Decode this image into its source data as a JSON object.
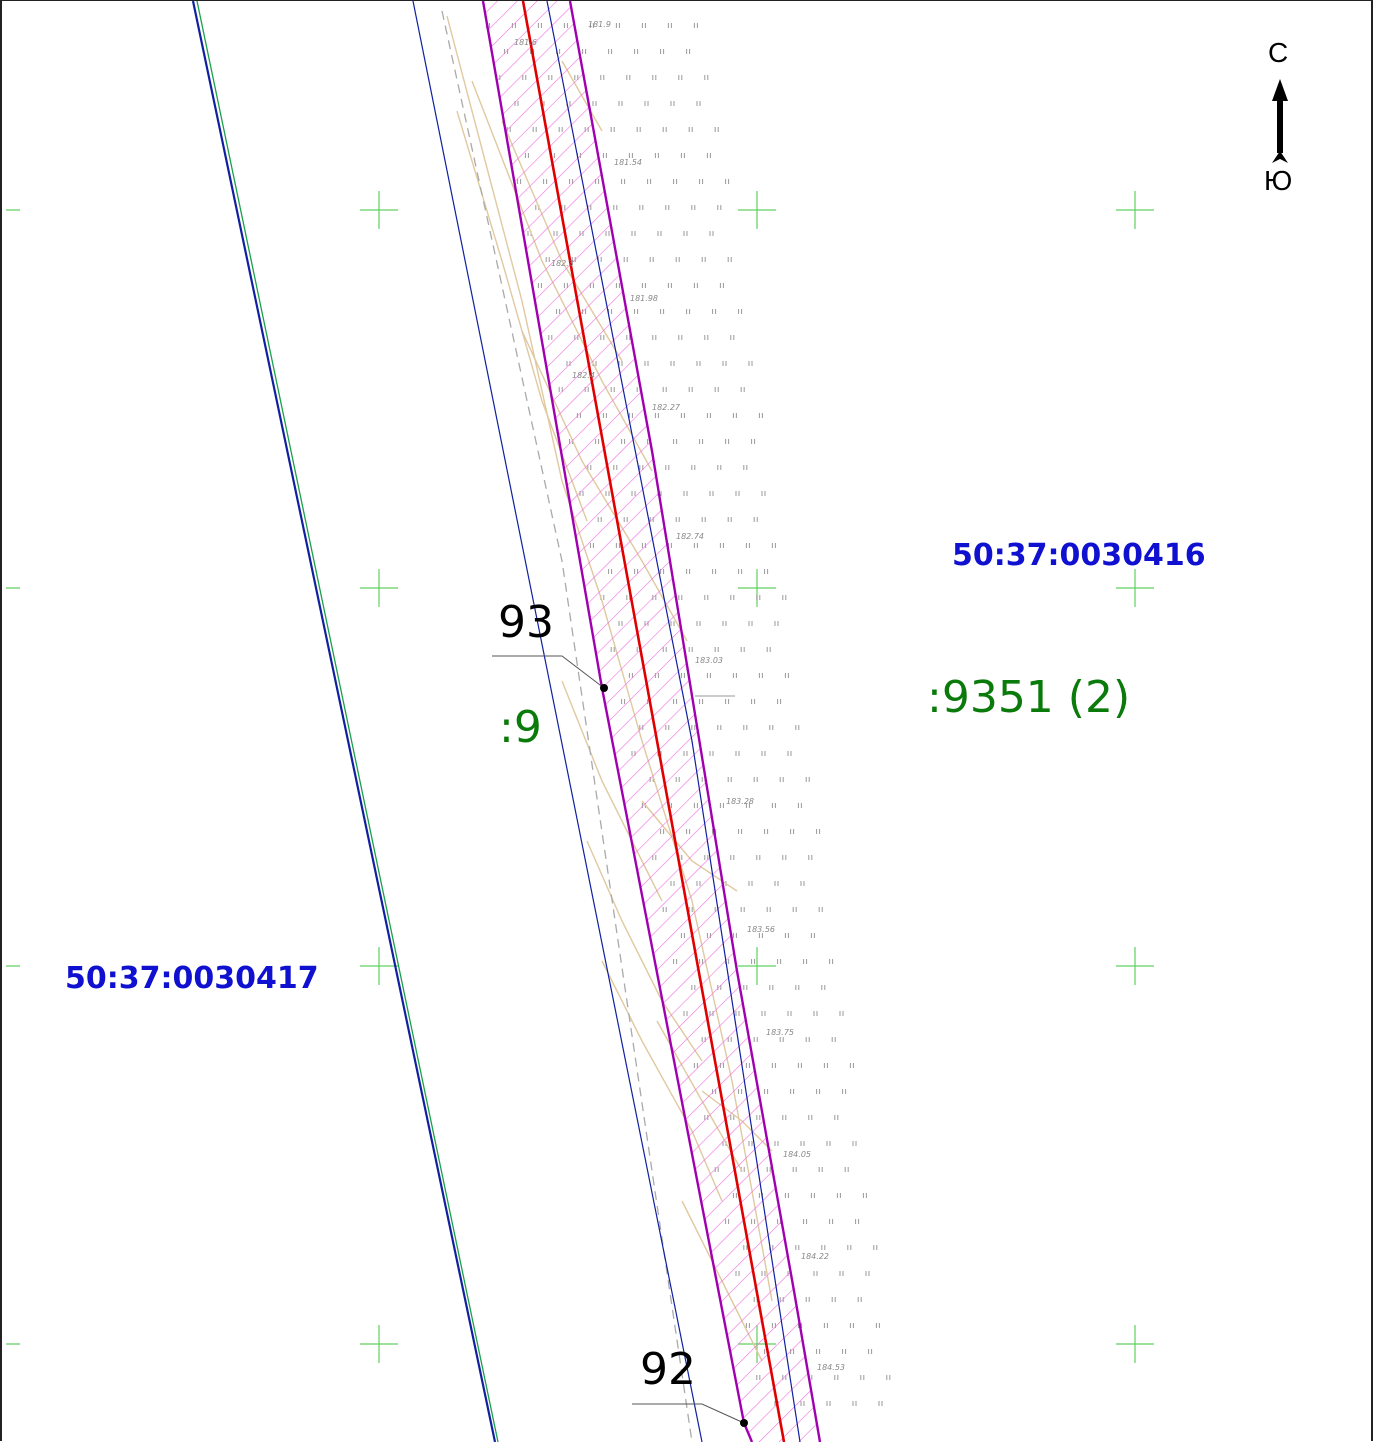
{
  "colors": {
    "quarter_label": "#1010d0",
    "parcel_label": "#0a7a0a",
    "axis_line": "#e00000",
    "zone_boundary": "#a000b0",
    "zone_hatch": "#f070e0",
    "blue_line": "#1020a0",
    "green_line": "#1aa04a",
    "contour": "#e0c9a0",
    "grid_cross": "#60d060"
  },
  "compass": {
    "north": "С",
    "south": "Ю",
    "icon": "north-arrow-icon"
  },
  "quarters": [
    {
      "label": "50:37:0030416"
    },
    {
      "label": "50:37:0030417"
    }
  ],
  "parcels": [
    {
      "label": ":9351 (2)"
    },
    {
      "label": ":9"
    }
  ],
  "points": [
    {
      "label": "93"
    },
    {
      "label": "92"
    }
  ],
  "elevations": [
    "181.9",
    "181.6",
    "181.54",
    "182.3",
    "181.98",
    "182.4",
    "182.27",
    "182.74",
    "183.03",
    "183.28",
    "183.56",
    "183.75",
    "184.05",
    "184.22",
    "184.53"
  ]
}
